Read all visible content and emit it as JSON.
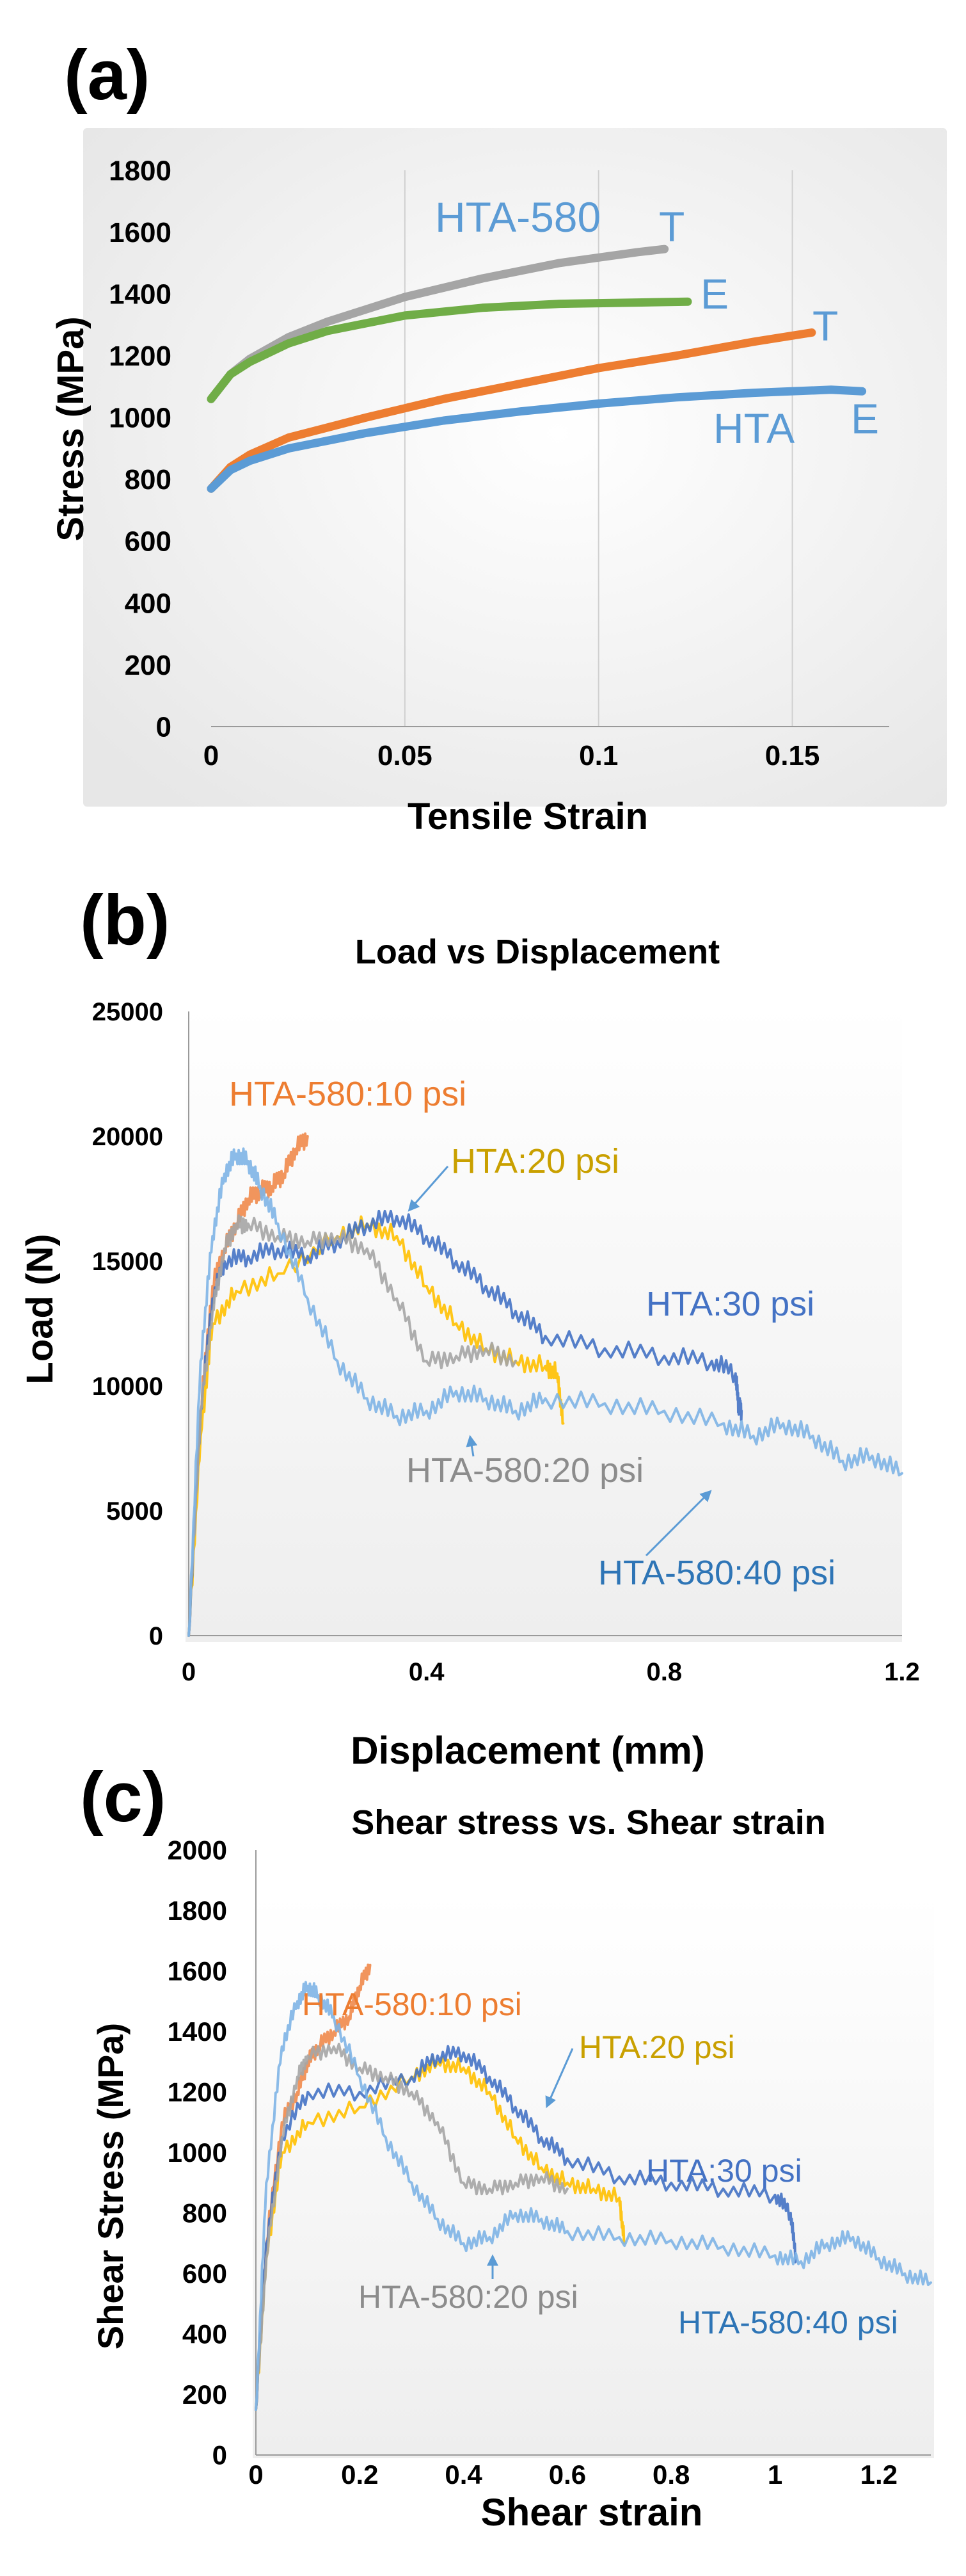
{
  "figure": {
    "panels": [
      "(a)",
      "(b)",
      "(c)"
    ]
  },
  "chart_data": [
    {
      "type": "line",
      "panel": "(a)",
      "title": "",
      "xlabel": "Tensile Strain",
      "ylabel": "Stress (MPa)",
      "xlim": [
        0,
        0.175
      ],
      "ylim": [
        0,
        1800
      ],
      "xticks": [
        0,
        0.05,
        0.1,
        0.15
      ],
      "xtick_labels": [
        "0",
        "0.05",
        "0.1",
        "0.15"
      ],
      "yticks": [
        0,
        200,
        400,
        600,
        800,
        1000,
        1200,
        1400,
        1600,
        1800
      ],
      "ytick_labels": [
        "0",
        "200",
        "400",
        "600",
        "800",
        "1000",
        "1200",
        "1400",
        "1600",
        "1800"
      ],
      "grid": "vertical",
      "series": [
        {
          "name": "HTA-580 T",
          "color": "#a5a5a5",
          "x": [
            0,
            0.005,
            0.01,
            0.02,
            0.03,
            0.05,
            0.07,
            0.09,
            0.11,
            0.117
          ],
          "y": [
            1060,
            1140,
            1190,
            1260,
            1310,
            1390,
            1450,
            1500,
            1535,
            1545
          ]
        },
        {
          "name": "HTA-580 E",
          "color": "#70ad47",
          "x": [
            0,
            0.005,
            0.01,
            0.02,
            0.03,
            0.05,
            0.07,
            0.09,
            0.11,
            0.123
          ],
          "y": [
            1060,
            1140,
            1180,
            1240,
            1280,
            1330,
            1355,
            1368,
            1372,
            1375
          ]
        },
        {
          "name": "HTA T",
          "color": "#ed7d31",
          "x": [
            0,
            0.005,
            0.01,
            0.02,
            0.04,
            0.06,
            0.08,
            0.1,
            0.12,
            0.14,
            0.155
          ],
          "y": [
            770,
            840,
            880,
            935,
            1000,
            1060,
            1110,
            1160,
            1200,
            1245,
            1275
          ]
        },
        {
          "name": "HTA E",
          "color": "#5b9bd5",
          "x": [
            0,
            0.005,
            0.01,
            0.02,
            0.04,
            0.06,
            0.08,
            0.1,
            0.12,
            0.14,
            0.16,
            0.168
          ],
          "y": [
            770,
            830,
            860,
            900,
            950,
            990,
            1020,
            1045,
            1065,
            1080,
            1090,
            1085
          ]
        }
      ],
      "annotations": [
        {
          "text": "HTA-580",
          "color": "#5b9bd5"
        },
        {
          "text": "T",
          "color": "#5b9bd5"
        },
        {
          "text": "E",
          "color": "#5b9bd5"
        },
        {
          "text": "T",
          "color": "#5b9bd5"
        },
        {
          "text": "HTA",
          "color": "#5b9bd5"
        },
        {
          "text": "E",
          "color": "#5b9bd5"
        }
      ]
    },
    {
      "type": "line",
      "panel": "(b)",
      "title": "Load vs Displacement",
      "xlabel": "Displacement (mm)",
      "ylabel": "Load (N)",
      "xlim": [
        0,
        1.2
      ],
      "ylim": [
        0,
        25000
      ],
      "xticks": [
        0,
        0.4,
        0.8,
        1.2
      ],
      "xtick_labels": [
        "0",
        "0.4",
        "0.8",
        "1.2"
      ],
      "yticks": [
        0,
        5000,
        10000,
        15000,
        20000,
        25000
      ],
      "ytick_labels": [
        "0",
        "5000",
        "10000",
        "15000",
        "20000",
        "25000"
      ],
      "grid": "none",
      "series": [
        {
          "name": "HTA-580:10 psi",
          "color": "#f08a4b",
          "x": [
            0,
            0.02,
            0.04,
            0.06,
            0.08,
            0.1,
            0.12,
            0.14,
            0.16,
            0.18,
            0.2
          ],
          "y": [
            0,
            9000,
            14000,
            15500,
            16500,
            17500,
            17800,
            18000,
            18500,
            19500,
            20000
          ]
        },
        {
          "name": "HTA:20 psi",
          "color": "#ffc000",
          "x": [
            0,
            0.02,
            0.04,
            0.08,
            0.15,
            0.25,
            0.3,
            0.35,
            0.4,
            0.45,
            0.5,
            0.55,
            0.6,
            0.62,
            0.63
          ],
          "y": [
            0,
            8000,
            12500,
            13800,
            14500,
            16000,
            16500,
            16000,
            14000,
            12500,
            11500,
            11000,
            10800,
            10500,
            8500
          ]
        },
        {
          "name": "HTA:30 psi",
          "color": "#4472c4",
          "x": [
            0,
            0.02,
            0.04,
            0.06,
            0.1,
            0.15,
            0.2,
            0.25,
            0.3,
            0.35,
            0.4,
            0.45,
            0.5,
            0.55,
            0.6,
            0.7,
            0.8,
            0.88,
            0.92,
            0.925,
            0.93
          ],
          "y": [
            0,
            9000,
            13500,
            15000,
            15200,
            15500,
            15200,
            15800,
            16500,
            16800,
            16000,
            15000,
            14000,
            13000,
            12000,
            11500,
            11200,
            11000,
            10500,
            9200,
            9000
          ]
        },
        {
          "name": "HTA-580:20 psi",
          "color": "#a5a5a5",
          "x": [
            0,
            0.02,
            0.04,
            0.06,
            0.08,
            0.1,
            0.15,
            0.2,
            0.25,
            0.3,
            0.35,
            0.4,
            0.45,
            0.5,
            0.55
          ],
          "y": [
            0,
            9000,
            13000,
            15500,
            16500,
            16500,
            16000,
            15800,
            16000,
            15500,
            13500,
            11000,
            11200,
            11500,
            11000
          ]
        },
        {
          "name": "HTA-580:40 psi",
          "color": "#7eb4e6",
          "x": [
            0,
            0.02,
            0.04,
            0.06,
            0.08,
            0.1,
            0.12,
            0.15,
            0.2,
            0.25,
            0.3,
            0.35,
            0.4,
            0.45,
            0.5,
            0.55,
            0.6,
            0.7,
            0.8,
            0.9,
            0.95,
            1.0,
            1.05,
            1.1,
            1.15,
            1.2
          ],
          "y": [
            0,
            11000,
            16000,
            18500,
            19300,
            19000,
            18000,
            16500,
            13500,
            11000,
            9500,
            8800,
            9000,
            9800,
            9500,
            9000,
            9500,
            9300,
            9000,
            8500,
            8000,
            8500,
            8000,
            7000,
            7200,
            6500
          ]
        }
      ],
      "annotations": [
        {
          "text": "HTA-580:10 psi",
          "color": "#ed7d31"
        },
        {
          "text": "HTA:20 psi",
          "color": "#c9a000"
        },
        {
          "text": "HTA:30 psi",
          "color": "#4472c4"
        },
        {
          "text": "HTA-580:20 psi",
          "color": "#8c8c8c"
        },
        {
          "text": "HTA-580:40 psi",
          "color": "#2e75b6"
        }
      ]
    },
    {
      "type": "line",
      "panel": "(c)",
      "title": "Shear stress vs. Shear strain",
      "xlabel": "Shear strain",
      "ylabel": "Shear Stress (MPa)",
      "xlim": [
        0,
        1.3
      ],
      "ylim": [
        0,
        2000
      ],
      "xticks": [
        0,
        0.2,
        0.4,
        0.6,
        0.8,
        1,
        1.2
      ],
      "xtick_labels": [
        "0",
        "0.2",
        "0.4",
        "0.6",
        "0.8",
        "1",
        "1.2"
      ],
      "yticks": [
        0,
        200,
        400,
        600,
        800,
        1000,
        1200,
        1400,
        1600,
        1800,
        2000
      ],
      "ytick_labels": [
        "0",
        "200",
        "400",
        "600",
        "800",
        "1000",
        "1200",
        "1400",
        "1600",
        "1800",
        "2000"
      ],
      "grid": "none",
      "series": [
        {
          "name": "HTA-580:10 psi",
          "color": "#f08a4b",
          "x": [
            0,
            0.02,
            0.05,
            0.08,
            0.1,
            0.12,
            0.15,
            0.18,
            0.2,
            0.22
          ],
          "y": [
            150,
            700,
            1100,
            1200,
            1300,
            1350,
            1400,
            1450,
            1550,
            1620
          ]
        },
        {
          "name": "HTA:20 psi",
          "color": "#ffc000",
          "x": [
            0,
            0.02,
            0.05,
            0.1,
            0.2,
            0.3,
            0.35,
            0.4,
            0.45,
            0.5,
            0.55,
            0.6,
            0.65,
            0.7,
            0.71
          ],
          "y": [
            150,
            650,
            1000,
            1100,
            1150,
            1250,
            1300,
            1280,
            1200,
            1050,
            950,
            900,
            880,
            850,
            700
          ]
        },
        {
          "name": "HTA:30 psi",
          "color": "#4472c4",
          "x": [
            0,
            0.02,
            0.05,
            0.1,
            0.2,
            0.3,
            0.35,
            0.4,
            0.45,
            0.5,
            0.55,
            0.6,
            0.7,
            0.8,
            0.9,
            1.0,
            1.03,
            1.04
          ],
          "y": [
            150,
            700,
            1050,
            1200,
            1200,
            1250,
            1320,
            1330,
            1250,
            1150,
            1050,
            980,
            920,
            900,
            880,
            860,
            800,
            650
          ]
        },
        {
          "name": "HTA-580:20 psi",
          "color": "#a5a5a5",
          "x": [
            0,
            0.02,
            0.05,
            0.08,
            0.1,
            0.15,
            0.2,
            0.25,
            0.3,
            0.35,
            0.4,
            0.45,
            0.5,
            0.55,
            0.6
          ],
          "y": [
            150,
            650,
            1050,
            1250,
            1320,
            1350,
            1280,
            1250,
            1200,
            1100,
            900,
            880,
            900,
            920,
            880
          ]
        },
        {
          "name": "HTA-580:40 psi",
          "color": "#7eb4e6",
          "x": [
            0,
            0.02,
            0.05,
            0.08,
            0.1,
            0.12,
            0.15,
            0.2,
            0.25,
            0.3,
            0.35,
            0.4,
            0.45,
            0.5,
            0.55,
            0.6,
            0.7,
            0.8,
            0.9,
            1.0,
            1.05,
            1.1,
            1.15,
            1.2,
            1.25,
            1.3
          ],
          "y": [
            150,
            900,
            1350,
            1500,
            1550,
            1520,
            1450,
            1250,
            1050,
            900,
            780,
            700,
            720,
            800,
            780,
            740,
            720,
            710,
            690,
            660,
            640,
            700,
            720,
            650,
            600,
            570
          ]
        }
      ],
      "annotations": [
        {
          "text": "HTA-580:10 psi",
          "color": "#ed7d31"
        },
        {
          "text": "HTA:20 psi",
          "color": "#c9a000"
        },
        {
          "text": "HTA:30 psi",
          "color": "#4472c4"
        },
        {
          "text": "HTA-580:20 psi",
          "color": "#8c8c8c"
        },
        {
          "text": "HTA-580:40 psi",
          "color": "#2e75b6"
        }
      ]
    }
  ]
}
